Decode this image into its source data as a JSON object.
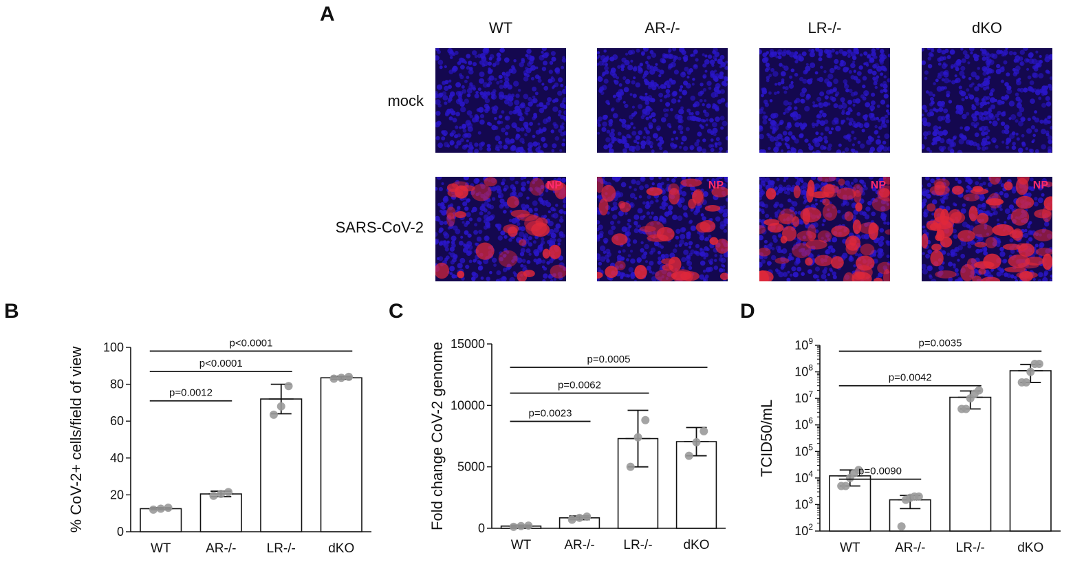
{
  "figure": {
    "panel_labels": [
      "A",
      "B",
      "C",
      "D"
    ],
    "panel_a": {
      "columns": [
        "WT",
        "AR-/-",
        "LR-/-",
        "dKO"
      ],
      "rows": [
        "mock",
        "SARS-CoV-2"
      ],
      "stain_label": "NP"
    }
  },
  "colors": {
    "nuclei_blue": "#2a16c8",
    "np_red": "#e0283a",
    "np_label": "#ff2a6d",
    "dot": "#9a9a9a",
    "bar_fill": "#ffffff",
    "axis": "#111111"
  },
  "chart_data": [
    {
      "panel": "B",
      "type": "bar",
      "categories": [
        "WT",
        "AR-/-",
        "LR-/-",
        "dKO"
      ],
      "values": [
        12.5,
        20.5,
        72,
        83.5
      ],
      "error": [
        0.6,
        1.5,
        8,
        0.8
      ],
      "points": [
        [
          12,
          12.5,
          13
        ],
        [
          19.5,
          20.5,
          21.5
        ],
        [
          63.5,
          68,
          79
        ],
        [
          83,
          83.5,
          84
        ]
      ],
      "ylabel": "% CoV-2+ cells/field of view",
      "ylim": [
        0,
        100
      ],
      "yticks": [
        0,
        20,
        40,
        60,
        80,
        100
      ],
      "yscale": "linear",
      "comparisons": [
        {
          "from": 0,
          "to": 1,
          "label": "p=0.0012",
          "y": 71
        },
        {
          "from": 0,
          "to": 2,
          "label": "p<0.0001",
          "y": 87
        },
        {
          "from": 0,
          "to": 3,
          "label": "p<0.0001",
          "y": 98
        }
      ]
    },
    {
      "panel": "C",
      "type": "bar",
      "categories": [
        "WT",
        "AR-/-",
        "LR-/-",
        "dKO"
      ],
      "values": [
        180,
        850,
        7300,
        7050
      ],
      "error": [
        80,
        150,
        2300,
        1150
      ],
      "points": [
        [
          120,
          180,
          220
        ],
        [
          700,
          850,
          950
        ],
        [
          5000,
          7400,
          8800
        ],
        [
          5900,
          7000,
          7900
        ]
      ],
      "ylabel": "Fold change CoV-2 genome",
      "ylim": [
        0,
        15000
      ],
      "yticks": [
        0,
        5000,
        10000,
        15000
      ],
      "yscale": "linear",
      "comparisons": [
        {
          "from": 0,
          "to": 1,
          "label": "p=0.0023",
          "y": 8700
        },
        {
          "from": 0,
          "to": 2,
          "label": "p=0.0062",
          "y": 11000
        },
        {
          "from": 0,
          "to": 3,
          "label": "p=0.0005",
          "y": 13100
        }
      ]
    },
    {
      "panel": "D",
      "type": "bar",
      "categories": [
        "WT",
        "AR-/-",
        "LR-/-",
        "dKO"
      ],
      "values": [
        12000,
        1500,
        11000000,
        110000000
      ],
      "error_low": [
        5000,
        700,
        4000000,
        40000000
      ],
      "error_high": [
        20000,
        2200,
        19000000,
        190000000
      ],
      "points": [
        [
          5000,
          5000,
          10000,
          15000,
          20000
        ],
        [
          150,
          1500,
          1800,
          2000,
          2000
        ],
        [
          4000000,
          4000000,
          10000000,
          15000000,
          20000000
        ],
        [
          40000000,
          40000000,
          100000000,
          200000000,
          200000000
        ]
      ],
      "ylabel": "TCID50/mL",
      "ylim": [
        100,
        1000000000
      ],
      "yticks": [
        100,
        1000,
        10000,
        100000,
        1000000,
        10000000,
        100000000,
        1000000000
      ],
      "yscale": "log",
      "comparisons": [
        {
          "from": 0,
          "to": 1,
          "label": "p=0.0090",
          "y": 9000
        },
        {
          "from": 0,
          "to": 2,
          "label": "p=0.0042",
          "y": 30000000
        },
        {
          "from": 0,
          "to": 3,
          "label": "p=0.0035",
          "y": 600000000
        }
      ]
    }
  ]
}
